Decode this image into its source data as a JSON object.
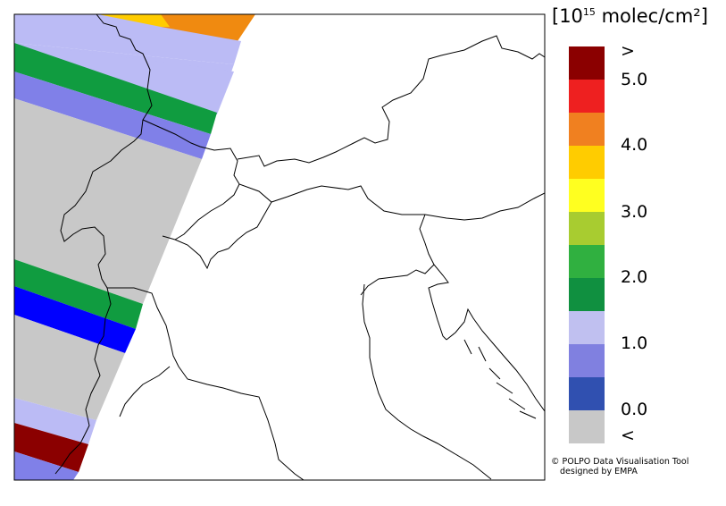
{
  "legend": {
    "unit_prefix": "[10",
    "unit_exponent": "15",
    "unit_suffix": " molec/cm²]",
    "labels": [
      ">",
      "5.0",
      "4.0",
      "3.0",
      "2.0",
      "1.0",
      "0.0",
      "<"
    ],
    "colors": [
      "#8b0000",
      "#ee2020",
      "#f08020",
      "#ffcc00",
      "#ffff20",
      "#a8cc30",
      "#30b040",
      "#109040",
      "#c0c0f0",
      "#8080e0",
      "#3050b0",
      "#c8c8c8"
    ]
  },
  "swath_colors": {
    "orange": "#f08a10",
    "yellow": "#ffcc00",
    "lavender": "#bbbbf5",
    "green": "#109c40",
    "periwinkle": "#8080e8",
    "gray": "#c8c8c8",
    "blue": "#0000ff",
    "darkred": "#8b0000"
  },
  "credit": {
    "line1": "© POLPO Data Visualisation Tool",
    "line2": "designed by EMPA"
  }
}
